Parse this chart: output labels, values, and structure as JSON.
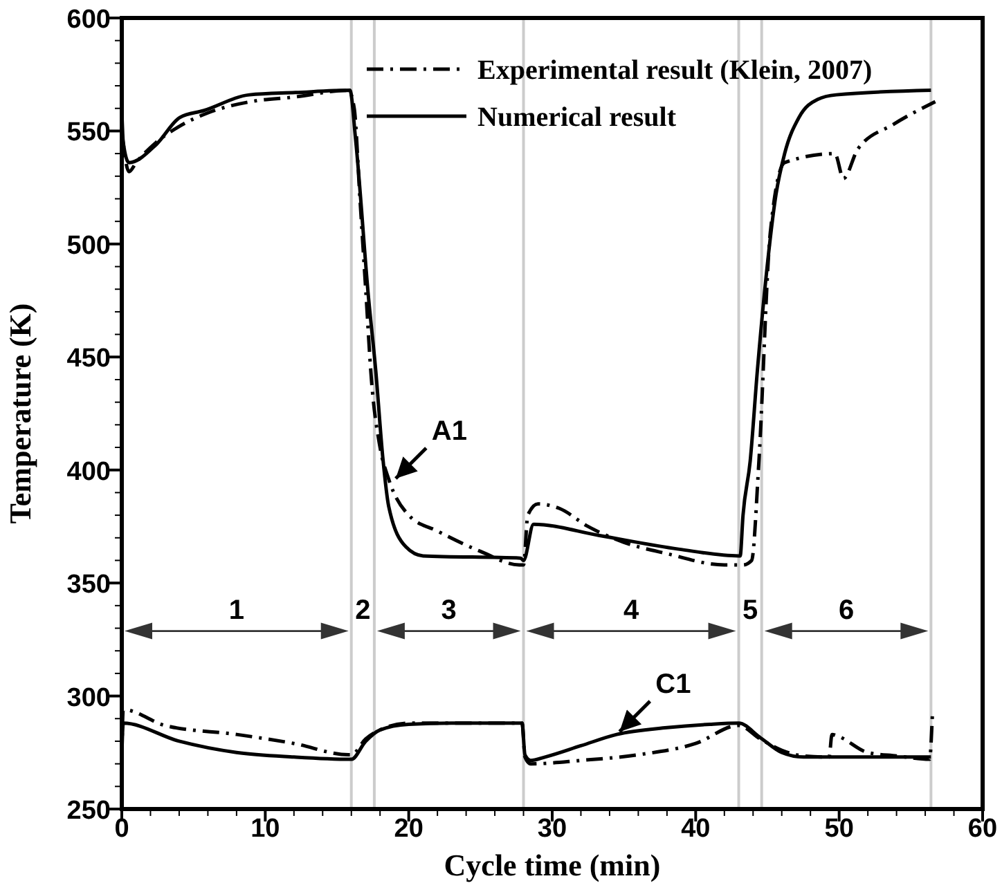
{
  "chart_data": {
    "type": "line",
    "xlabel": "Cycle time (min)",
    "ylabel": "Temperature (K)",
    "xlim": [
      0,
      60
    ],
    "ylim": [
      250,
      600
    ],
    "xticks": [
      0,
      {
        "value": 2,
        "label": null
      },
      {
        "value": 4,
        "label": null
      },
      {
        "value": 6,
        "label": null
      },
      {
        "value": 8,
        "label": null
      },
      10,
      {
        "value": 12,
        "label": null
      },
      {
        "value": 14,
        "label": null
      },
      {
        "value": 16,
        "label": null
      },
      {
        "value": 18,
        "label": null
      },
      20,
      {
        "value": 22,
        "label": null
      },
      {
        "value": 24,
        "label": null
      },
      {
        "value": 26,
        "label": null
      },
      {
        "value": 28,
        "label": null
      },
      30,
      {
        "value": 32,
        "label": null
      },
      {
        "value": 34,
        "label": null
      },
      {
        "value": 36,
        "label": null
      },
      {
        "value": 38,
        "label": null
      },
      40,
      {
        "value": 42,
        "label": null
      },
      {
        "value": 44,
        "label": null
      },
      {
        "value": 46,
        "label": null
      },
      {
        "value": 48,
        "label": null
      },
      50,
      {
        "value": 52,
        "label": null
      },
      {
        "value": 54,
        "label": null
      },
      {
        "value": 56,
        "label": null
      },
      {
        "value": 58,
        "label": null
      },
      60
    ],
    "yticks": [
      250,
      {
        "value": 260,
        "label": null
      },
      {
        "value": 270,
        "label": null
      },
      {
        "value": 280,
        "label": null
      },
      {
        "value": 290,
        "label": null
      },
      300,
      {
        "value": 310,
        "label": null
      },
      {
        "value": 320,
        "label": null
      },
      {
        "value": 330,
        "label": null
      },
      {
        "value": 340,
        "label": null
      },
      350,
      {
        "value": 360,
        "label": null
      },
      {
        "value": 370,
        "label": null
      },
      {
        "value": 380,
        "label": null
      },
      {
        "value": 390,
        "label": null
      },
      400,
      {
        "value": 410,
        "label": null
      },
      {
        "value": 420,
        "label": null
      },
      {
        "value": 430,
        "label": null
      },
      {
        "value": 440,
        "label": null
      },
      450,
      {
        "value": 460,
        "label": null
      },
      {
        "value": 470,
        "label": null
      },
      {
        "value": 480,
        "label": null
      },
      {
        "value": 490,
        "label": null
      },
      500,
      {
        "value": 510,
        "label": null
      },
      {
        "value": 520,
        "label": null
      },
      {
        "value": 530,
        "label": null
      },
      {
        "value": 540,
        "label": null
      },
      550,
      {
        "value": 560,
        "label": null
      },
      {
        "value": 570,
        "label": null
      },
      {
        "value": 580,
        "label": null
      },
      {
        "value": 590,
        "label": null
      },
      600
    ],
    "grid": false,
    "legend": "top right",
    "series": [
      {
        "name": "Experimental result (Klein, 2007)",
        "color": "#000000",
        "line_style": "dashdot",
        "x": [
          0,
          0.5,
          1,
          2.4,
          4,
          6,
          9,
          12,
          15.8,
          16.2,
          16.6,
          17,
          17.4,
          18,
          18.6,
          20,
          22,
          25,
          27.7,
          28,
          28.3,
          29,
          30.5,
          32.5,
          35,
          38,
          42,
          43.3,
          43.9,
          44.4,
          45.2,
          46.2,
          49.7,
          50.3,
          51.3,
          53.8,
          56.7
        ],
        "values": [
          550,
          532,
          536,
          545,
          552,
          558,
          563,
          565,
          568,
          560,
          520,
          480,
          440,
          410,
          396,
          380,
          373,
          364,
          358,
          358,
          380,
          385,
          383,
          375,
          368,
          363,
          358,
          358,
          360,
          403,
          505,
          536,
          540,
          529,
          542,
          553,
          563
        ]
      },
      {
        "name": "Numerical result",
        "color": "#000000",
        "line_style": "solid",
        "x": [
          0,
          0.1,
          0.5,
          2.4,
          4.05,
          5.7,
          8.9,
          12.1,
          15.9,
          16.3,
          17.2,
          17.7,
          18.2,
          18.6,
          19.8,
          21,
          27.8,
          28,
          28.7,
          33.3,
          38.8,
          43,
          43.1,
          43.3,
          43.8,
          44.3,
          44.9,
          45.6,
          46.2,
          47.2,
          48.5,
          49.8,
          56.4
        ],
        "values": [
          560,
          545,
          536,
          544,
          556,
          559,
          566,
          567,
          568,
          546,
          476,
          444,
          405,
          384,
          366,
          362,
          361,
          360,
          376,
          371,
          365,
          362,
          362,
          380,
          404,
          444,
          485,
          522,
          540,
          556,
          564,
          566,
          568
        ]
      },
      {
        "color": "#000000",
        "line_style": "dashdot",
        "x": [
          0,
          0.1,
          3,
          8,
          12,
          15.8,
          16,
          17,
          18,
          20,
          27.9,
          28.1,
          28.5,
          32,
          36,
          40,
          43,
          44.5,
          46,
          47.5,
          49.3,
          49.5,
          50,
          52,
          54,
          56.3,
          56.5
        ],
        "values": [
          272,
          294,
          287,
          283,
          279,
          274,
          274,
          281,
          285,
          288,
          288,
          273,
          270,
          271.5,
          274,
          279,
          287,
          281,
          276,
          273.5,
          273,
          283,
          282,
          275,
          273.5,
          272,
          292
        ]
      },
      {
        "color": "#000000",
        "line_style": "solid",
        "x": [
          0,
          0.1,
          4,
          8,
          12,
          15.9,
          16,
          17,
          18,
          20,
          23,
          27.9,
          28.1,
          28.5,
          29.5,
          32,
          34.5,
          38,
          41,
          43,
          44.5,
          46,
          47.5,
          56.4
        ],
        "values": [
          273,
          288,
          280,
          275,
          273,
          272,
          272,
          280,
          285,
          287.5,
          288,
          288,
          274,
          271.5,
          273,
          278,
          283,
          286,
          287.5,
          288,
          281.6,
          275,
          273,
          273
        ]
      }
    ],
    "ref_lines": [
      {
        "axis": "x",
        "value": 16,
        "color": "#cccccc"
      },
      {
        "axis": "x",
        "value": 17.6,
        "color": "#cccccc"
      },
      {
        "axis": "x",
        "value": 28,
        "color": "#cccccc"
      },
      {
        "axis": "x",
        "value": 43,
        "color": "#cccccc"
      },
      {
        "axis": "x",
        "value": 44.6,
        "color": "#cccccc"
      },
      {
        "axis": "x",
        "value": 56.4,
        "color": "#cccccc"
      }
    ],
    "annotations": [
      "1",
      "2",
      "3",
      "4",
      "5",
      "6",
      {
        "text": "A1",
        "x": 18.9,
        "y": 395
      },
      {
        "text": "C1",
        "x": 34.5,
        "y": 283
      }
    ]
  }
}
